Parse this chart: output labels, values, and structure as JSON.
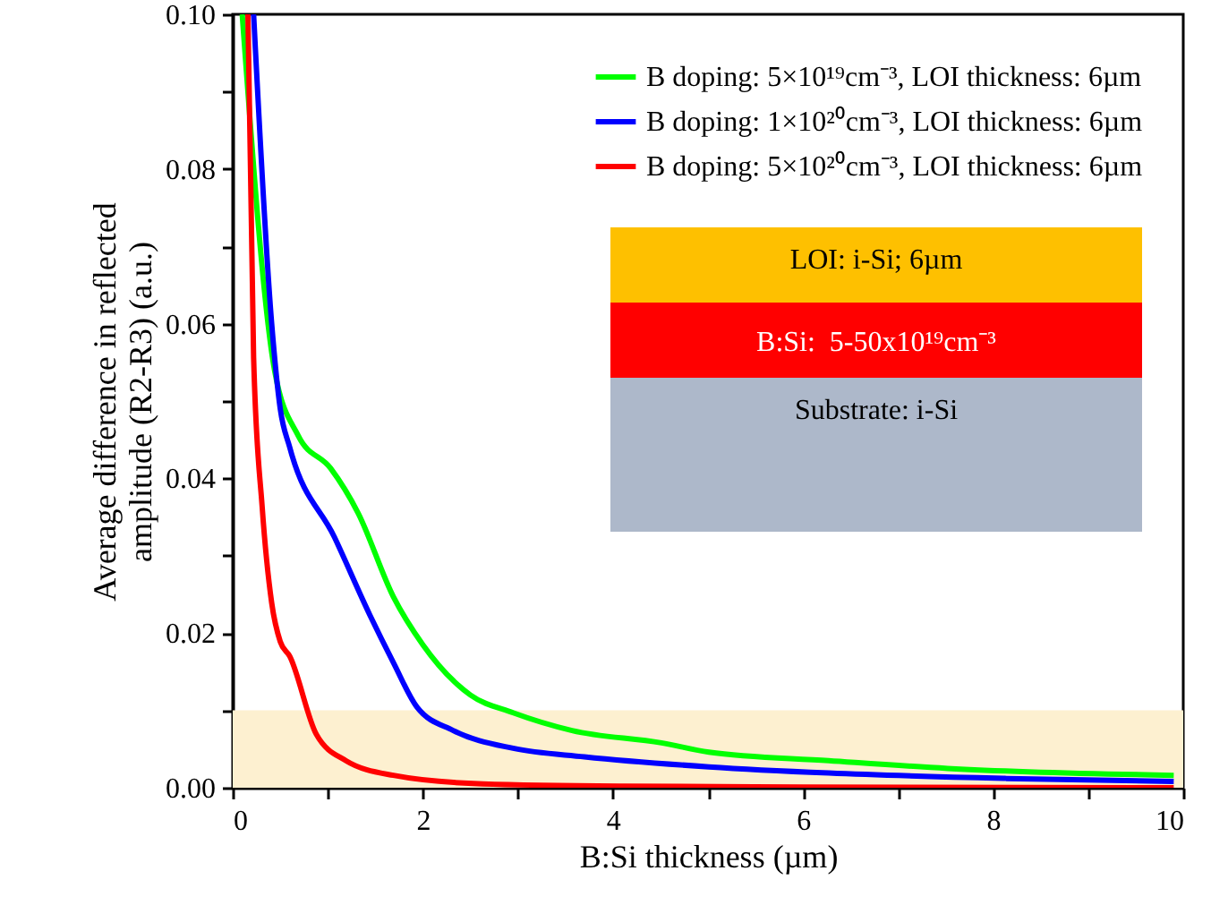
{
  "chart_data": {
    "type": "line",
    "xlabel": "B:Si thickness (µm)",
    "ylabel": "Average difference in reflected\namplitude (R2-R3) (a.u.)",
    "xlim": [
      0,
      10
    ],
    "xticks": [
      0,
      {
        "value": 1,
        "label": null
      },
      2,
      {
        "value": 3,
        "label": null
      },
      4,
      {
        "value": 5,
        "label": null
      },
      6,
      {
        "value": 7,
        "label": null
      },
      8,
      {
        "value": 9,
        "label": null
      },
      10
    ],
    "ylim": [
      0,
      0.1
    ],
    "yticks": [
      {
        "value": 0,
        "label": "0.00"
      },
      {
        "value": 0.01,
        "label": null
      },
      {
        "value": 0.02,
        "label": "0.02"
      },
      {
        "value": 0.03,
        "label": null
      },
      {
        "value": 0.04,
        "label": "0.04"
      },
      {
        "value": 0.05,
        "label": null
      },
      {
        "value": 0.06,
        "label": "0.06"
      },
      {
        "value": 0.07,
        "label": null
      },
      {
        "value": 0.08,
        "label": "0.08"
      },
      {
        "value": 0.09,
        "label": null
      },
      {
        "value": 0.1,
        "label": "0.10"
      }
    ],
    "legend": "top right",
    "series": [
      {
        "name": "B doping: 5×10¹⁹cm⁻³, LOI thickness: 6µm",
        "color": "#00ff00",
        "x": [
          0.1,
          0.44,
          0.69,
          1.03,
          1.32,
          1.69,
          2.0,
          2.5,
          2.95,
          3.57,
          4.51,
          5.01,
          6.27,
          7.52,
          9.9
        ],
        "values": [
          0.1,
          0.054,
          0.0455,
          0.0413,
          0.0355,
          0.0247,
          0.0185,
          0.012,
          0.0097,
          0.0074,
          0.0058,
          0.0046,
          0.0035,
          0.0025,
          0.0016
        ]
      },
      {
        "name": "B doping: 1×10²⁰cm⁻³, LOI thickness: 6µm",
        "color": "#0000ff",
        "x": [
          0.22,
          0.41,
          0.5,
          0.6,
          1.07,
          1.44,
          1.69,
          1.94,
          2.32,
          2.95,
          3.7,
          5.01,
          6.27,
          8.14,
          9.9
        ],
        "values": [
          0.1,
          0.06,
          0.049,
          0.044,
          0.0324,
          0.0224,
          0.0162,
          0.0104,
          0.0074,
          0.0051,
          0.004,
          0.0027,
          0.0019,
          0.0012,
          0.0008
        ]
      },
      {
        "name": "B doping: 5×10²⁰cm⁻³, LOI thickness: 6µm",
        "color": "#ff0000",
        "x": [
          0.16,
          0.22,
          0.31,
          0.41,
          0.5,
          0.6,
          0.88,
          1.19,
          1.69,
          2.63,
          4.1,
          6.0,
          9.9
        ],
        "values": [
          0.1,
          0.0556,
          0.0363,
          0.0239,
          0.0189,
          0.017,
          0.0069,
          0.0035,
          0.0016,
          0.0005,
          0.0002,
          0.0001,
          0.0
        ]
      }
    ],
    "bands": [
      {
        "axis": "y",
        "from": 0,
        "to": 0.01,
        "color": "#fdf0d0"
      }
    ],
    "annotations": [
      "LOI: i-Si; 6µm",
      "B:Si:  5-50x10¹⁹cm⁻³",
      "Substrate: i-Si"
    ]
  }
}
